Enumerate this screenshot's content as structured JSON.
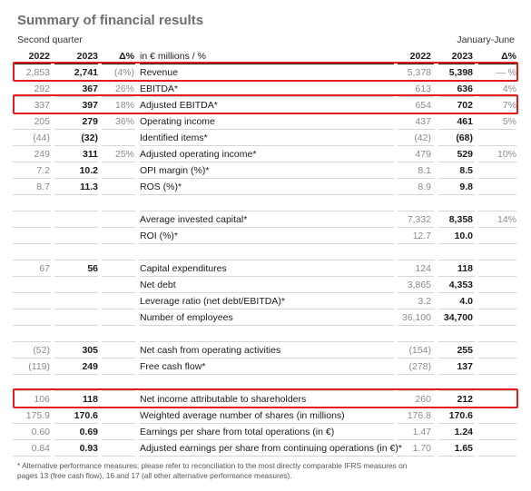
{
  "title": "Summary of financial results",
  "period_left": "Second quarter",
  "period_right": "January-June",
  "header": {
    "y1": "2022",
    "y2": "2023",
    "d1": "Δ%",
    "label": "in € millions / %",
    "y3": "2022",
    "y4": "2023",
    "d2": "Δ%"
  },
  "rows": [
    {
      "a": "2,853",
      "b": "2,741",
      "c": "(4%)",
      "label": "Revenue",
      "d": "5,378",
      "e": "5,398",
      "f": "— %"
    },
    {
      "a": "292",
      "b": "367",
      "c": "26%",
      "label": "EBITDA*",
      "d": "613",
      "e": "636",
      "f": "4%"
    },
    {
      "a": "337",
      "b": "397",
      "c": "18%",
      "label": "Adjusted EBITDA*",
      "d": "654",
      "e": "702",
      "f": "7%"
    },
    {
      "a": "205",
      "b": "279",
      "c": "36%",
      "label": "Operating income",
      "d": "437",
      "e": "461",
      "f": "5%"
    },
    {
      "a": "(44)",
      "b": "(32)",
      "c": "",
      "label": "Identified items*",
      "d": "(42)",
      "e": "(68)",
      "f": ""
    },
    {
      "a": "249",
      "b": "311",
      "c": "25%",
      "label": "Adjusted operating income*",
      "d": "479",
      "e": "529",
      "f": "10%"
    },
    {
      "a": "7.2",
      "b": "10.2",
      "c": "",
      "label": "OPI margin (%)*",
      "d": "8.1",
      "e": "8.5",
      "f": ""
    },
    {
      "a": "8.7",
      "b": "11.3",
      "c": "",
      "label": "ROS (%)*",
      "d": "8.9",
      "e": "9.8",
      "f": ""
    },
    {
      "a": "",
      "b": "",
      "c": "",
      "label": "",
      "d": "",
      "e": "",
      "f": ""
    },
    {
      "a": "",
      "b": "",
      "c": "",
      "label": "Average invested capital*",
      "d": "7,332",
      "e": "8,358",
      "f": "14%"
    },
    {
      "a": "",
      "b": "",
      "c": "",
      "label": "ROI (%)*",
      "d": "12.7",
      "e": "10.0",
      "f": ""
    },
    {
      "a": "",
      "b": "",
      "c": "",
      "label": "",
      "d": "",
      "e": "",
      "f": ""
    },
    {
      "a": "67",
      "b": "56",
      "c": "",
      "label": "Capital expenditures",
      "d": "124",
      "e": "118",
      "f": ""
    },
    {
      "a": "",
      "b": "",
      "c": "",
      "label": "Net debt",
      "d": "3,865",
      "e": "4,353",
      "f": ""
    },
    {
      "a": "",
      "b": "",
      "c": "",
      "label": "Leverage ratio (net debt/EBITDA)*",
      "d": "3.2",
      "e": "4.0",
      "f": ""
    },
    {
      "a": "",
      "b": "",
      "c": "",
      "label": "Number of employees",
      "d": "36,100",
      "e": "34,700",
      "f": ""
    },
    {
      "a": "",
      "b": "",
      "c": "",
      "label": "",
      "d": "",
      "e": "",
      "f": ""
    },
    {
      "a": "(52)",
      "b": "305",
      "c": "",
      "label": "Net cash from operating activities",
      "d": "(154)",
      "e": "255",
      "f": ""
    },
    {
      "a": "(119)",
      "b": "249",
      "c": "",
      "label": "Free cash flow*",
      "d": "(278)",
      "e": "137",
      "f": ""
    },
    {
      "a": "",
      "b": "",
      "c": "",
      "label": "",
      "d": "",
      "e": "",
      "f": ""
    },
    {
      "a": "106",
      "b": "118",
      "c": "",
      "label": "Net income attributable to shareholders",
      "d": "260",
      "e": "212",
      "f": ""
    },
    {
      "a": "175.9",
      "b": "170.6",
      "c": "",
      "label": "Weighted average number of shares (in millions)",
      "d": "176.8",
      "e": "170.6",
      "f": ""
    },
    {
      "a": "0.60",
      "b": "0.69",
      "c": "",
      "label": "Earnings per share from total operations (in €)",
      "d": "1.47",
      "e": "1.24",
      "f": ""
    },
    {
      "a": "0.84",
      "b": "0.93",
      "c": "",
      "label": "Adjusted earnings per share from continuing operations (in €)*",
      "d": "1.70",
      "e": "1.65",
      "f": ""
    }
  ],
  "highlighted_rows": [
    "Revenue",
    "Adjusted EBITDA*",
    "Net income attributable to shareholders"
  ],
  "highlight_color": "#e31b1b",
  "footnote": "* Alternative performance measures; please refer to reconciliation to the most directly comparable IFRS measures on pages 13 (free cash flow), 16 and 17 (all other alternative performance measures)."
}
